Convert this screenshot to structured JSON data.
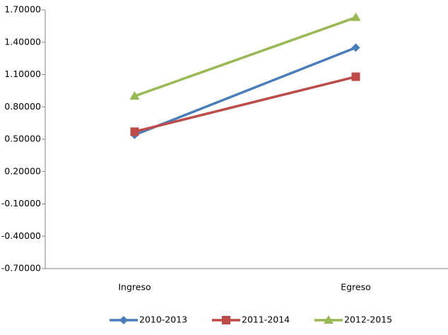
{
  "chart_data": {
    "type": "line",
    "categories": [
      "Ingreso",
      "Egreso"
    ],
    "series": [
      {
        "name": "2010-2013",
        "color": "#4a7ebb",
        "marker": "diamond",
        "values": [
          0.54,
          1.35
        ]
      },
      {
        "name": "2011-2014",
        "color": "#be4b48",
        "marker": "square",
        "values": [
          0.57,
          1.08
        ]
      },
      {
        "name": "2012-2015",
        "color": "#98b954",
        "marker": "triangle",
        "values": [
          0.9,
          1.63
        ]
      }
    ],
    "ylim": [
      -0.7,
      1.7
    ],
    "yticks": [
      {
        "value": -0.7,
        "label": "-0.70000"
      },
      {
        "value": -0.4,
        "label": "-0.40000"
      },
      {
        "value": -0.1,
        "label": "-0.10000"
      },
      {
        "value": 0.2,
        "label": "0.20000"
      },
      {
        "value": 0.5,
        "label": "0.50000"
      },
      {
        "value": 0.8,
        "label": "0.80000"
      },
      {
        "value": 1.1,
        "label": "1.10000"
      },
      {
        "value": 1.4,
        "label": "1.40000"
      },
      {
        "value": 1.7,
        "label": "1.70000"
      }
    ],
    "grid": false,
    "legend": "bottom"
  }
}
